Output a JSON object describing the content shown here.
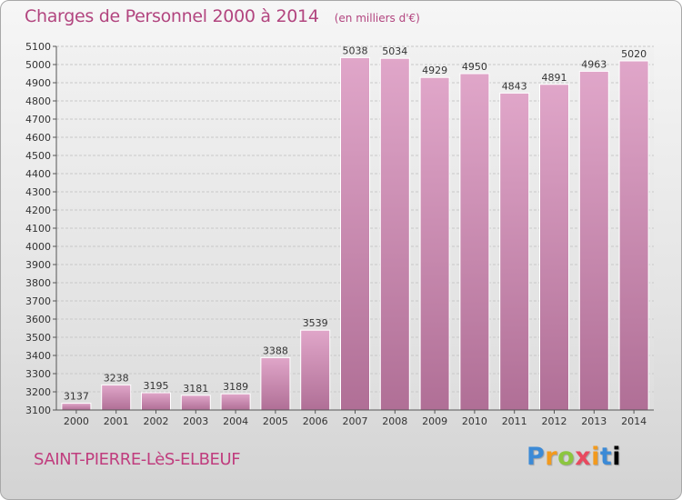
{
  "header": {
    "title": "Charges de Personnel 2000 à 2014",
    "unit": "(en milliers d'€)"
  },
  "footer": {
    "commune": "SAINT-PIERRE-LèS-ELBEUF",
    "logo": "Proxiti"
  },
  "colors": {
    "bar_top": "#e0a6c9",
    "bar_bottom": "#b06f96",
    "title": "#b2457f"
  },
  "chart_data": {
    "type": "bar",
    "title": "Charges de Personnel 2000 à 2014",
    "subtitle": "(en milliers d'€)",
    "categories": [
      "2000",
      "2001",
      "2002",
      "2003",
      "2004",
      "2005",
      "2006",
      "2007",
      "2008",
      "2009",
      "2010",
      "2011",
      "2012",
      "2013",
      "2014"
    ],
    "values": [
      3137,
      3238,
      3195,
      3181,
      3189,
      3388,
      3539,
      5038,
      5034,
      4929,
      4950,
      4843,
      4891,
      4963,
      5020
    ],
    "ylim": [
      3100,
      5100
    ],
    "yticks": [
      3100,
      3200,
      3300,
      3400,
      3500,
      3600,
      3700,
      3800,
      3900,
      4000,
      4100,
      4200,
      4300,
      4400,
      4500,
      4600,
      4700,
      4800,
      4900,
      5000,
      5100
    ],
    "grid": true,
    "xlabel": "",
    "ylabel": ""
  }
}
